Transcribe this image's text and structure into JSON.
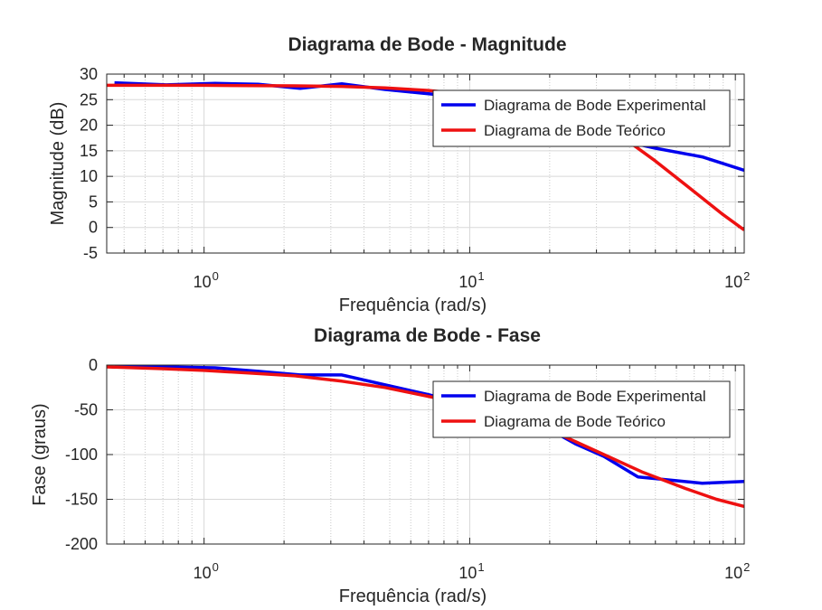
{
  "chart_data": [
    {
      "type": "line",
      "title": "Diagrama de Bode - Magnitude",
      "xlabel": "Frequência (rad/s)",
      "ylabel": "Magnitude (dB)",
      "xscale": "log",
      "xlim": [
        0.43,
        108
      ],
      "ylim": [
        -5,
        30
      ],
      "yticks": [
        30,
        25,
        20,
        15,
        10,
        5,
        0,
        -5
      ],
      "xticks": [
        {
          "base": "10",
          "exp": "0",
          "value": 1
        },
        {
          "base": "10",
          "exp": "1",
          "value": 10
        },
        {
          "base": "10",
          "exp": "2",
          "value": 100
        }
      ],
      "grid": true,
      "legend": "top-right",
      "series": [
        {
          "name": "Diagrama de Bode Experimental",
          "color": "#0000ee",
          "x": [
            0.46,
            0.72,
            1.1,
            1.6,
            2.3,
            3.3,
            4.8,
            7.5,
            11,
            16,
            24,
            35,
            50,
            75,
            108
          ],
          "y": [
            28.3,
            27.9,
            28.2,
            28.0,
            27.2,
            28.1,
            27.0,
            26.0,
            24.5,
            22.3,
            19.5,
            17.3,
            15.5,
            13.8,
            11.2
          ]
        },
        {
          "name": "Diagrama de Bode Teórico",
          "color": "#ee1111",
          "x": [
            0.43,
            0.7,
            1.0,
            1.5,
            2.2,
            3.3,
            4.8,
            7.0,
            10,
            15,
            22,
            30,
            38,
            50,
            70,
            90,
            108
          ],
          "y": [
            27.8,
            27.8,
            27.8,
            27.75,
            27.7,
            27.6,
            27.3,
            26.8,
            26.0,
            24.5,
            22.5,
            20.3,
            17.5,
            13.0,
            7.0,
            2.5,
            -0.5
          ]
        }
      ]
    },
    {
      "type": "line",
      "title": "Diagrama de Bode - Fase",
      "xlabel": "Frequência (rad/s)",
      "ylabel": "Fase (graus)",
      "xscale": "log",
      "xlim": [
        0.43,
        108
      ],
      "ylim": [
        -200,
        0
      ],
      "yticks": [
        0,
        -50,
        -100,
        -150,
        -200
      ],
      "xticks": [
        {
          "base": "10",
          "exp": "0",
          "value": 1
        },
        {
          "base": "10",
          "exp": "1",
          "value": 10
        },
        {
          "base": "10",
          "exp": "2",
          "value": 100
        }
      ],
      "grid": true,
      "legend": "top-right",
      "series": [
        {
          "name": "Diagrama de Bode Experimental",
          "color": "#0000ee",
          "x": [
            0.46,
            0.7,
            1.1,
            1.6,
            2.3,
            3.3,
            4.8,
            7.0,
            10,
            15,
            20,
            25,
            32,
            43,
            75,
            108
          ],
          "y": [
            0,
            -2,
            -3,
            -7,
            -11,
            -11,
            -22,
            -33,
            -45,
            -60,
            -72,
            -88,
            -102,
            -125,
            -132,
            -130
          ]
        },
        {
          "name": "Diagrama de Bode Teórico",
          "color": "#ee1111",
          "x": [
            0.43,
            0.7,
            1.0,
            1.5,
            2.2,
            3.3,
            4.8,
            7.0,
            10,
            15,
            22,
            32,
            45,
            65,
            85,
            108
          ],
          "y": [
            -2,
            -4,
            -6,
            -9,
            -12,
            -18,
            -25,
            -35,
            -45,
            -60,
            -78,
            -100,
            -120,
            -138,
            -150,
            -158
          ]
        }
      ]
    }
  ]
}
